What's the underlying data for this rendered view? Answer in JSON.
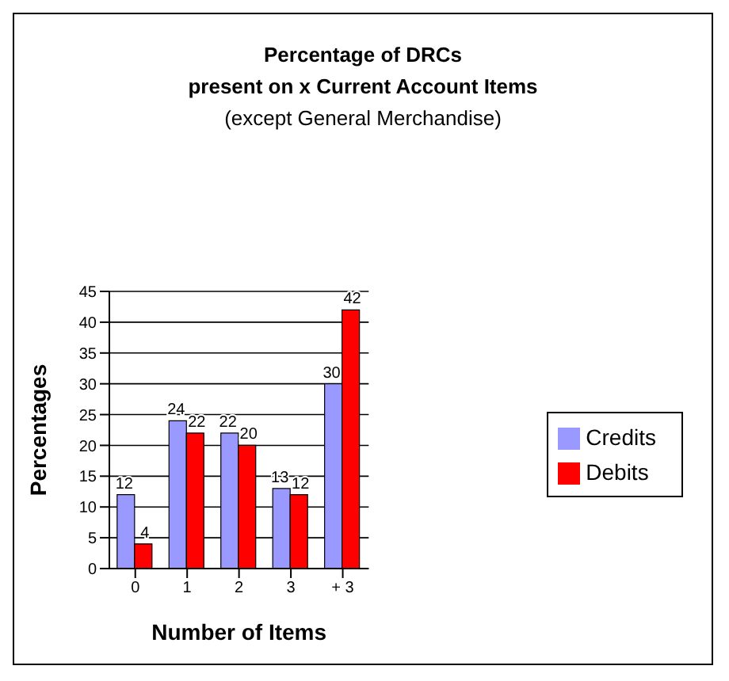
{
  "chart_data": {
    "type": "bar",
    "title": "Percentage of DRCs\npresent on x Current Account  Items",
    "subtitle": "(except General Merchandise)",
    "xlabel": "Number of Items",
    "ylabel": "Percentages",
    "categories": [
      "0",
      "1",
      "2",
      "3",
      "+ 3"
    ],
    "series": [
      {
        "name": "Credits",
        "color": "#9999ff",
        "values": [
          12,
          24,
          22,
          13,
          30
        ]
      },
      {
        "name": "Debits",
        "color": "#ff0000",
        "values": [
          4,
          22,
          20,
          12,
          42
        ]
      }
    ],
    "ylim": [
      0,
      45
    ],
    "yticks": [
      0,
      5,
      10,
      15,
      20,
      25,
      30,
      35,
      40,
      45
    ],
    "grid": "y",
    "legend": "right",
    "data_labels": true
  }
}
